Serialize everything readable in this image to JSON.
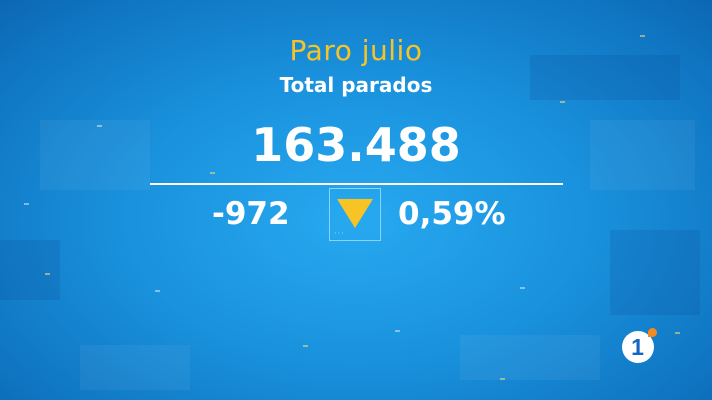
{
  "graphic": {
    "title": "Paro julio",
    "subtitle": "Total parados",
    "total": "163.488",
    "change": "-972",
    "change_pct": "0,59%",
    "trend_icon": "down-triangle",
    "accent_color": "#f7c325"
  },
  "channel_logo": {
    "number": "1",
    "icon": "la1-channel-logo"
  }
}
